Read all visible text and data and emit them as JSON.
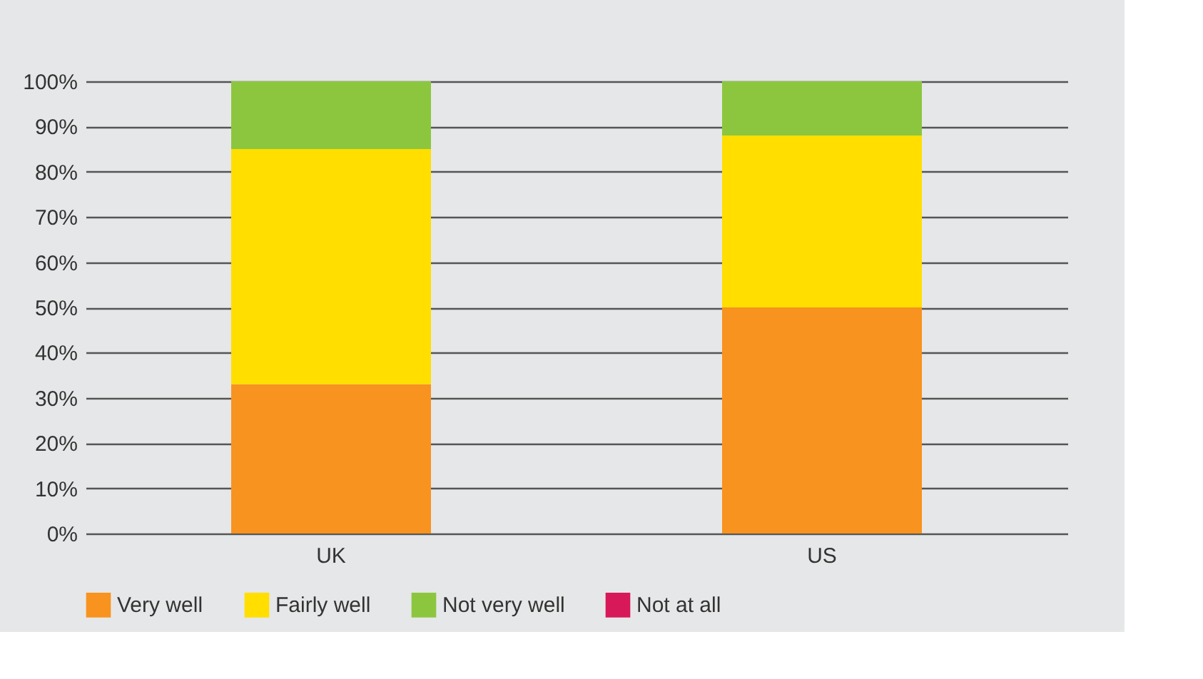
{
  "chart_data": {
    "type": "bar",
    "stacked": true,
    "categories": [
      "UK",
      "US"
    ],
    "series": [
      {
        "name": "Very well",
        "color": "#f7931e",
        "values": [
          33,
          50
        ]
      },
      {
        "name": "Fairly well",
        "color": "#ffde00",
        "values": [
          52,
          38
        ]
      },
      {
        "name": "Not very well",
        "color": "#8cc63f",
        "values": [
          15,
          12
        ]
      },
      {
        "name": "Not at all",
        "color": "#d7195a",
        "values": [
          0,
          0
        ]
      }
    ],
    "ylim": [
      0,
      100
    ],
    "yticks": [
      {
        "value": 0,
        "label": "0%"
      },
      {
        "value": 10,
        "label": "10%"
      },
      {
        "value": 20,
        "label": "20%"
      },
      {
        "value": 30,
        "label": "30%"
      },
      {
        "value": 40,
        "label": "40%"
      },
      {
        "value": 50,
        "label": "50%"
      },
      {
        "value": 60,
        "label": "60%"
      },
      {
        "value": 70,
        "label": "70%"
      },
      {
        "value": 80,
        "label": "80%"
      },
      {
        "value": 90,
        "label": "90%"
      },
      {
        "value": 100,
        "label": "100%"
      }
    ],
    "grid": "y",
    "legend": "bottom left"
  }
}
